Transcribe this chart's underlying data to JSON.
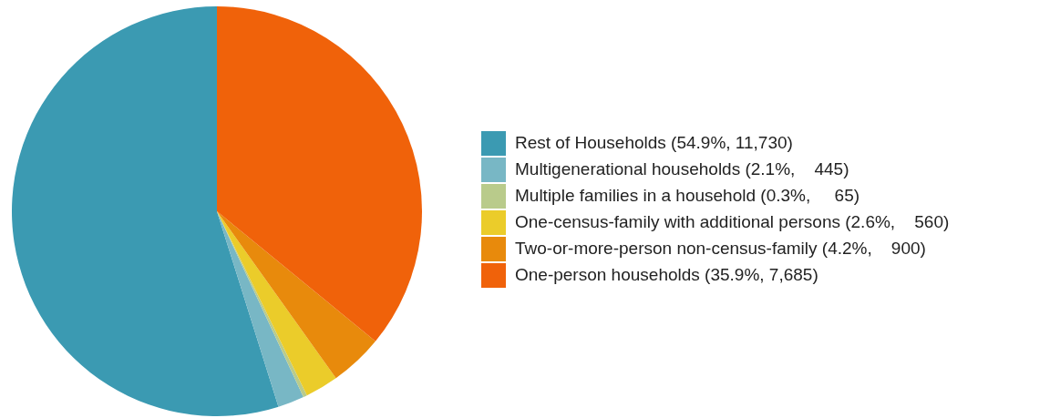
{
  "chart_data": {
    "type": "pie",
    "categories": [
      "Rest of Households (54.9%, 11,730)",
      "Multigenerational households (2.1%,    445)",
      "Multiple families in a household (0.3%,     65)",
      "One-census-family with additional persons (2.6%,    560)",
      "Two-or-more-person non-census-family (4.2%,    900)",
      "One-person households (35.9%, 7,685)"
    ],
    "values": [
      11730,
      445,
      65,
      560,
      900,
      7685
    ],
    "colors": [
      "#3b9ab2",
      "#78b7c5",
      "#b9cb8b",
      "#ebcc2a",
      "#e88a0c",
      "#f0620a"
    ],
    "legend": "right"
  }
}
